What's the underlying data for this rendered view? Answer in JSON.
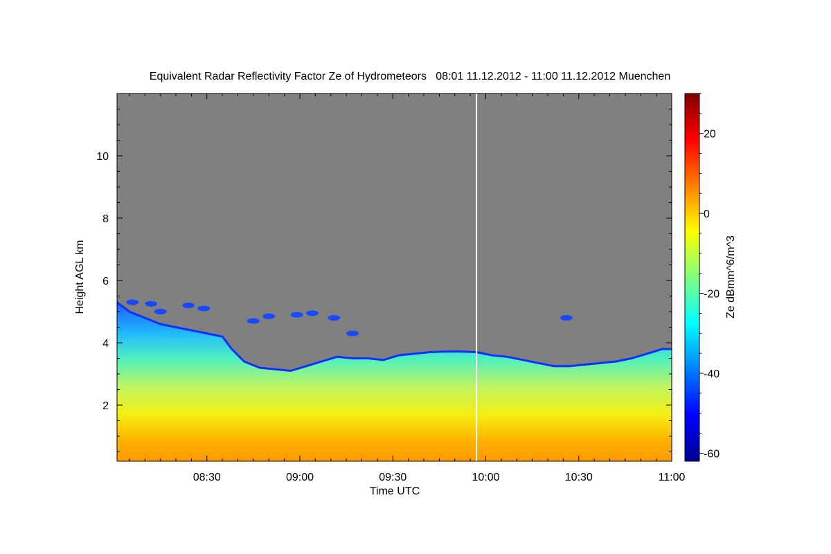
{
  "chart_data": {
    "type": "heatmap",
    "title": "Equivalent Radar Reflectivity Factor Ze of Hydrometeors   08:01 11.12.2012 - 11:00 11.12.2012 Muenchen",
    "xlabel": "Time UTC",
    "ylabel": "Height AGL km",
    "colorbar_label": "Ze dBmm^6/m^3",
    "x_range_minutes_utc": [
      481,
      660
    ],
    "y_range_km": [
      0.2,
      12
    ],
    "x_tick_minutes_utc": [
      510,
      540,
      570,
      600,
      630,
      660
    ],
    "x_tick_labels": [
      "08:30",
      "09:00",
      "09:30",
      "10:00",
      "10:30",
      "11:00"
    ],
    "y_ticks": [
      2,
      4,
      6,
      8,
      10
    ],
    "y_tick_labels": [
      "2",
      "4",
      "6",
      "8",
      "10"
    ],
    "colorbar_range_dbz": [
      -62,
      30
    ],
    "colorbar_ticks": [
      -60,
      -40,
      -20,
      0,
      20
    ],
    "colorbar_tick_labels": [
      "-60",
      "-40",
      "-20",
      "0",
      "20"
    ],
    "colormap": [
      "#00008f",
      "#0000ff",
      "#0080ff",
      "#00ffff",
      "#80ff80",
      "#ffff00",
      "#ff8000",
      "#ff0000",
      "#800000"
    ],
    "no_signal_color": "#808080",
    "data_gap_minute_utc": 597,
    "cloud_top_km": [
      {
        "t": 481,
        "h": 5.3
      },
      {
        "t": 485,
        "h": 5.0
      },
      {
        "t": 490,
        "h": 4.8
      },
      {
        "t": 495,
        "h": 4.6
      },
      {
        "t": 500,
        "h": 4.5
      },
      {
        "t": 505,
        "h": 4.4
      },
      {
        "t": 510,
        "h": 4.3
      },
      {
        "t": 515,
        "h": 4.2
      },
      {
        "t": 518,
        "h": 3.8
      },
      {
        "t": 522,
        "h": 3.4
      },
      {
        "t": 527,
        "h": 3.2
      },
      {
        "t": 532,
        "h": 3.15
      },
      {
        "t": 537,
        "h": 3.1
      },
      {
        "t": 542,
        "h": 3.25
      },
      {
        "t": 547,
        "h": 3.4
      },
      {
        "t": 552,
        "h": 3.55
      },
      {
        "t": 557,
        "h": 3.5
      },
      {
        "t": 562,
        "h": 3.5
      },
      {
        "t": 567,
        "h": 3.45
      },
      {
        "t": 572,
        "h": 3.6
      },
      {
        "t": 577,
        "h": 3.65
      },
      {
        "t": 582,
        "h": 3.7
      },
      {
        "t": 587,
        "h": 3.72
      },
      {
        "t": 592,
        "h": 3.72
      },
      {
        "t": 597,
        "h": 3.7
      },
      {
        "t": 602,
        "h": 3.6
      },
      {
        "t": 607,
        "h": 3.55
      },
      {
        "t": 612,
        "h": 3.45
      },
      {
        "t": 617,
        "h": 3.35
      },
      {
        "t": 622,
        "h": 3.25
      },
      {
        "t": 627,
        "h": 3.25
      },
      {
        "t": 632,
        "h": 3.3
      },
      {
        "t": 637,
        "h": 3.35
      },
      {
        "t": 642,
        "h": 3.4
      },
      {
        "t": 647,
        "h": 3.5
      },
      {
        "t": 652,
        "h": 3.65
      },
      {
        "t": 657,
        "h": 3.8
      },
      {
        "t": 660,
        "h": 3.8
      }
    ],
    "isolated_cells": [
      {
        "t": 486,
        "h": 5.3
      },
      {
        "t": 492,
        "h": 5.25
      },
      {
        "t": 495,
        "h": 5.0
      },
      {
        "t": 504,
        "h": 5.2
      },
      {
        "t": 509,
        "h": 5.1
      },
      {
        "t": 525,
        "h": 4.7
      },
      {
        "t": 530,
        "h": 4.85
      },
      {
        "t": 539,
        "h": 4.9
      },
      {
        "t": 544,
        "h": 4.95
      },
      {
        "t": 551,
        "h": 4.8
      },
      {
        "t": 557,
        "h": 4.3
      },
      {
        "t": 626,
        "h": 4.8
      }
    ]
  }
}
